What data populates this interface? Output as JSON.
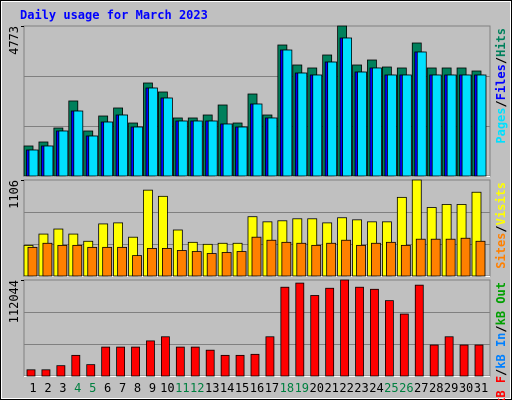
{
  "chart_data": [
    {
      "type": "bar",
      "title": "Daily usage for March 2023",
      "ylim": [
        0,
        4773
      ],
      "yticks": [
        4773
      ],
      "gridlines": [
        1591,
        3182
      ],
      "legend_separator": "/",
      "series": [
        {
          "name": "Pages",
          "color": "#00e0ff",
          "values": [
            827,
            955,
            1432,
            2068,
            1273,
            1718,
            1941,
            1559,
            2800,
            2482,
            1750,
            1750,
            1750,
            1655,
            1559,
            2291,
            1846,
            4009,
            3277,
            3214,
            3627,
            4391,
            3309,
            3437,
            3214,
            3214,
            3946,
            3214,
            3214,
            3214,
            3214
          ]
        },
        {
          "name": "Files",
          "color": "#0000ff",
          "values": [
            827,
            955,
            1432,
            2068,
            1273,
            1718,
            1941,
            1559,
            2800,
            2482,
            1750,
            1750,
            1750,
            1655,
            1559,
            2291,
            1846,
            4009,
            3277,
            3214,
            3627,
            4391,
            3309,
            3437,
            3214,
            3214,
            3946,
            3214,
            3214,
            3214,
            3214
          ]
        },
        {
          "name": "Hits",
          "color": "#00805c",
          "values": [
            955,
            1082,
            1527,
            2387,
            1432,
            1909,
            2164,
            1686,
            2959,
            2673,
            1846,
            1846,
            1941,
            2259,
            1686,
            2609,
            1941,
            4168,
            3532,
            3437,
            3850,
            4773,
            3532,
            3691,
            3468,
            3437,
            4232,
            3437,
            3437,
            3437,
            3341
          ]
        }
      ]
    },
    {
      "type": "bar",
      "ylim": [
        0,
        1106
      ],
      "yticks": [
        1106
      ],
      "gridlines": [
        369,
        737
      ],
      "legend_separator": "/",
      "series": [
        {
          "name": "Sites",
          "color": "#ff8000",
          "values": [
            330,
            377,
            353,
            353,
            330,
            330,
            330,
            235,
            318,
            318,
            294,
            282,
            259,
            271,
            282,
            447,
            412,
            388,
            377,
            353,
            377,
            412,
            353,
            377,
            388,
            353,
            424,
            424,
            424,
            435,
            400
          ]
        },
        {
          "name": "Visits",
          "color": "#ffff00",
          "values": [
            353,
            483,
            541,
            483,
            400,
            600,
            612,
            447,
            989,
            918,
            530,
            388,
            365,
            377,
            377,
            683,
            624,
            636,
            659,
            659,
            612,
            671,
            647,
            624,
            624,
            906,
            1106,
            789,
            824,
            824,
            965
          ]
        }
      ]
    },
    {
      "type": "bar",
      "ylim": [
        0,
        112044
      ],
      "yticks": [
        112044
      ],
      "gridlines": [
        37348,
        74696
      ],
      "legend_separator": "/",
      "categories": [
        "1",
        "2",
        "3",
        "4",
        "5",
        "6",
        "7",
        "8",
        "9",
        "10",
        "11",
        "12",
        "13",
        "14",
        "15",
        "16",
        "17",
        "18",
        "19",
        "20",
        "21",
        "22",
        "23",
        "24",
        "25",
        "26",
        "27",
        "28",
        "29",
        "30",
        "31"
      ],
      "category_colors": [
        "#000000",
        "#000000",
        "#000000",
        "#008040",
        "#008040",
        "#000000",
        "#000000",
        "#000000",
        "#000000",
        "#000000",
        "#008040",
        "#008040",
        "#000000",
        "#000000",
        "#000000",
        "#000000",
        "#000000",
        "#008040",
        "#008040",
        "#000000",
        "#000000",
        "#000000",
        "#000000",
        "#000000",
        "#008040",
        "#008040",
        "#000000",
        "#000000",
        "#000000",
        "#000000",
        "#000000"
      ],
      "series": [
        {
          "name": "kB F",
          "color": "#ff0000",
          "values": [
            7229,
            7229,
            12048,
            24096,
            13253,
            33734,
            33734,
            33734,
            40963,
            45782,
            33734,
            33734,
            30120,
            24096,
            24096,
            25300,
            45782,
            103613,
            108432,
            93974,
            102408,
            112044,
            103613,
            101203,
            87950,
            72288,
            106022,
            36144,
            45782,
            36144,
            36144
          ]
        },
        {
          "name": "kB In",
          "color": "#0080ff"
        },
        {
          "name": "kB Out",
          "color": "#00a000"
        }
      ]
    }
  ]
}
